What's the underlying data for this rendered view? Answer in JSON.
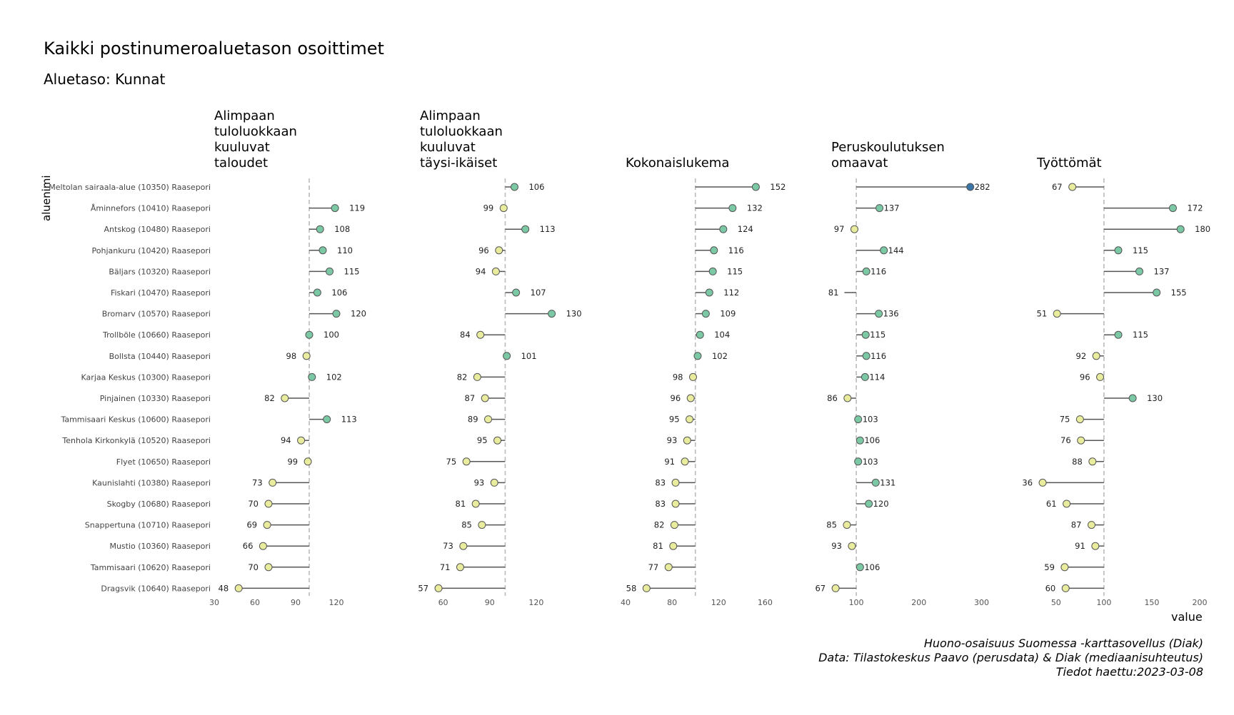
{
  "title": "Kaikki postinumeroaluetason osoittimet",
  "subtitle": "Aluetaso: Kunnat",
  "ylabel": "aluenimi",
  "xlabel": "value",
  "caption": [
    "Huono-osaisuus Suomessa -karttasovellus (Diak)",
    "Data: Tilastokeskus Paavo (perusdata) & Diak (mediaanisuhteutus)",
    "Tiedot haettu:2023-03-08"
  ],
  "colors": {
    "below": "#e8ec9c",
    "above": "#7bc8a4",
    "max": "#3a75a8",
    "line": "#555555",
    "ref": "#bbbbbb"
  },
  "chart_data": {
    "type": "lollipop",
    "reference_value": 100,
    "categories": [
      "Meltolan sairaala-alue (10350) Raasepori",
      "Åminnefors (10410) Raasepori",
      "Antskog (10480) Raasepori",
      "Pohjankuru (10420) Raasepori",
      "Bäljars (10320) Raasepori",
      "Fiskari (10470) Raasepori",
      "Bromarv (10570) Raasepori",
      "Trollböle (10660) Raasepori",
      "Bollsta (10440) Raasepori",
      "Karjaa Keskus (10300) Raasepori",
      "Pinjainen (10330) Raasepori",
      "Tammisaari Keskus (10600) Raasepori",
      "Tenhola Kirkonkylä (10520) Raasepori",
      "Flyet (10650) Raasepori",
      "Kaunislahti (10380) Raasepori",
      "Skogby (10680) Raasepori",
      "Snappertuna (10710) Raasepori",
      "Mustio (10360) Raasepori",
      "Tammisaari (10620) Raasepori",
      "Dragsvik (10640) Raasepori"
    ],
    "panels": [
      {
        "title": [
          "Alimpaan",
          "tuloluokkaan",
          "kuuluvat",
          "taloudet"
        ],
        "xlim": [
          30,
          150
        ],
        "ticks": [
          30,
          60,
          90,
          120
        ],
        "values": [
          null,
          119,
          108,
          110,
          115,
          106,
          120,
          100,
          98,
          102,
          82,
          113,
          94,
          99,
          73,
          70,
          69,
          66,
          70,
          48
        ]
      },
      {
        "title": [
          "Alimpaan",
          "tuloluokkaan",
          "kuuluvat",
          "täysi-ikäiset"
        ],
        "xlim": [
          45,
          150
        ],
        "ticks": [
          60,
          90,
          120
        ],
        "values": [
          106,
          99,
          113,
          96,
          94,
          107,
          130,
          84,
          101,
          82,
          87,
          89,
          95,
          75,
          93,
          81,
          85,
          73,
          71,
          57
        ]
      },
      {
        "title": [
          "Kokonaislukema"
        ],
        "xlim": [
          40,
          180
        ],
        "ticks": [
          40,
          80,
          120,
          160
        ],
        "values": [
          152,
          132,
          124,
          116,
          115,
          112,
          109,
          104,
          102,
          98,
          96,
          95,
          93,
          91,
          83,
          83,
          82,
          81,
          77,
          58
        ]
      },
      {
        "title": [
          "Peruskoulutuksen",
          "omaavat"
        ],
        "xlim": [
          60,
          320
        ],
        "ticks": [
          100,
          200,
          300
        ],
        "values": [
          282,
          137,
          97,
          144,
          116,
          null,
          136,
          115,
          116,
          114,
          86,
          103,
          106,
          103,
          131,
          120,
          85,
          93,
          106,
          67
        ],
        "labels_only": [
          null,
          null,
          null,
          null,
          null,
          81,
          null,
          null,
          null,
          null,
          null,
          null,
          null,
          null,
          null,
          null,
          null,
          null,
          null,
          null
        ]
      },
      {
        "title": [
          "Työttömät"
        ],
        "xlim": [
          30,
          200
        ],
        "ticks": [
          50,
          100,
          150,
          200
        ],
        "values": [
          67,
          172,
          180,
          115,
          137,
          155,
          51,
          115,
          92,
          96,
          130,
          75,
          76,
          88,
          36,
          61,
          87,
          91,
          59,
          60
        ]
      }
    ]
  }
}
